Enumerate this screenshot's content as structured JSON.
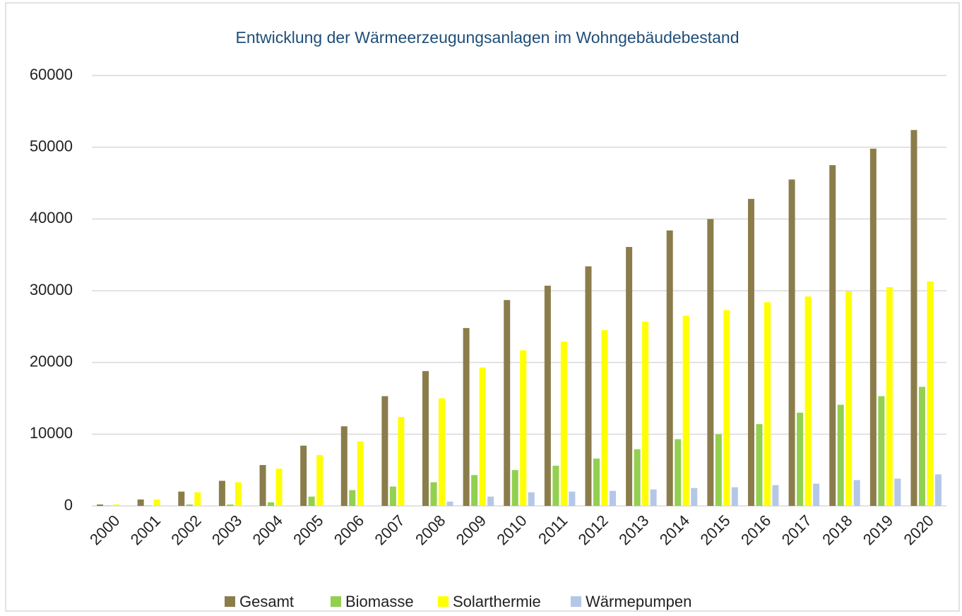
{
  "chart_data": {
    "type": "bar",
    "title": "Entwicklung der Wärmeerzeugungsanlagen im Wohngebäudebestand",
    "categories": [
      "2000",
      "2001",
      "2002",
      "2003",
      "2004",
      "2005",
      "2006",
      "2007",
      "2008",
      "2009",
      "2010",
      "2011",
      "2012",
      "2013",
      "2014",
      "2015",
      "2016",
      "2017",
      "2018",
      "2019",
      "2020"
    ],
    "series": [
      {
        "name": "Gesamt",
        "color": "#8b7d4b",
        "values": [
          200,
          900,
          2000,
          3500,
          5700,
          8400,
          11100,
          15300,
          18800,
          24800,
          28700,
          30700,
          33400,
          36100,
          38400,
          40000,
          42800,
          45500,
          47500,
          49800,
          52400
        ]
      },
      {
        "name": "Biomasse",
        "color": "#92d050",
        "values": [
          50,
          50,
          200,
          200,
          500,
          1300,
          2200,
          2700,
          3300,
          4300,
          5000,
          5600,
          6600,
          7900,
          9300,
          10000,
          11400,
          13000,
          14100,
          15300,
          16600
        ]
      },
      {
        "name": "Solarthermie",
        "color": "#ffff00",
        "values": [
          200,
          900,
          1900,
          3300,
          5200,
          7100,
          9000,
          12400,
          15000,
          19300,
          21700,
          22900,
          24500,
          25700,
          26500,
          27300,
          28400,
          29200,
          29900,
          30500,
          31300
        ]
      },
      {
        "name": "Wärmepumpen",
        "color": "#b4c7e7",
        "values": [
          0,
          0,
          0,
          0,
          0,
          0,
          0,
          0,
          600,
          1300,
          1900,
          2000,
          2100,
          2300,
          2500,
          2600,
          2900,
          3100,
          3600,
          3800,
          4400
        ]
      }
    ],
    "ylim": [
      0,
      60000
    ],
    "yticks": [
      0,
      10000,
      20000,
      30000,
      40000,
      50000,
      60000
    ],
    "grid": true,
    "legend": "bottom"
  }
}
